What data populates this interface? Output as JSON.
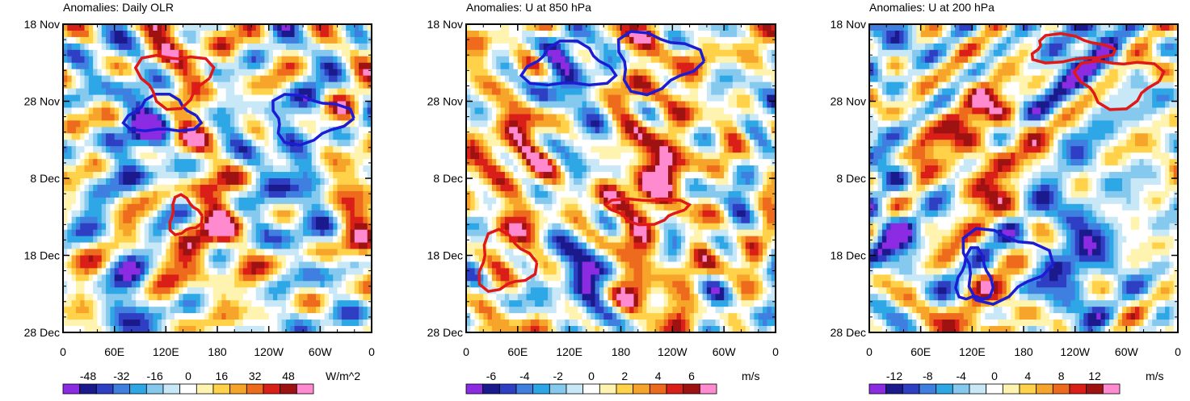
{
  "chart_data": [
    {
      "type": "heatmap",
      "title": "Anomalies: Daily OLR",
      "x_ticks": [
        "0",
        "60E",
        "120E",
        "180",
        "120W",
        "60W",
        "0"
      ],
      "y_ticks": [
        "18 Nov",
        "28 Nov",
        "8 Dec",
        "18 Dec",
        "28 Dec"
      ],
      "units": "W/m^2",
      "colorbar_labels": [
        "-48",
        "-32",
        "-16",
        "0",
        "16",
        "32",
        "48"
      ],
      "levels": [
        -56,
        -48,
        -40,
        -32,
        -24,
        -16,
        -8,
        0,
        8,
        16,
        24,
        32,
        40,
        48,
        56
      ],
      "bands": [
        {
          "center": 140,
          "width": 40,
          "sign": 1,
          "slope": 0.6
        },
        {
          "center": 80,
          "width": 35,
          "sign": -1,
          "slope": 0.3
        },
        {
          "center": 280,
          "width": 50,
          "sign": -1,
          "slope": 0.2
        },
        {
          "center": 330,
          "width": 40,
          "sign": 1,
          "slope": 0.1
        }
      ],
      "contours": [
        {
          "color": "blue",
          "points": [
            [
              20,
              [
                0,
                0
              ]
            ],
            [
              0,
              0
            ]
          ]
        }
      ]
    },
    {
      "type": "heatmap",
      "title": "Anomalies: U at 850 hPa",
      "x_ticks": [
        "0",
        "60E",
        "120E",
        "180",
        "120W",
        "60W",
        "0"
      ],
      "y_ticks": [
        "18 Nov",
        "28 Nov",
        "8 Dec",
        "18 Dec",
        "28 Dec"
      ],
      "units": "m/s",
      "colorbar_labels": [
        "-6",
        "-4",
        "-2",
        "0",
        "2",
        "4",
        "6"
      ],
      "levels": [
        -7,
        -6,
        -5,
        -4,
        -3,
        -2,
        -1,
        0,
        1,
        2,
        3,
        4,
        5,
        6,
        7
      ],
      "bands": [
        {
          "center": 190,
          "width": 30,
          "sign": 1,
          "slope": 0.0
        },
        {
          "center": 120,
          "width": 40,
          "sign": -1,
          "slope": 0.2
        },
        {
          "center": 60,
          "width": 50,
          "sign": 1,
          "slope": 0.1
        },
        {
          "center": 230,
          "width": 40,
          "sign": 1,
          "slope": 0.0
        }
      ]
    },
    {
      "type": "heatmap",
      "title": "Anomalies: U at 200 hPa",
      "x_ticks": [
        "0",
        "60E",
        "120E",
        "180",
        "120W",
        "60W",
        "0"
      ],
      "y_ticks": [
        "18 Nov",
        "28 Nov",
        "8 Dec",
        "18 Dec",
        "28 Dec"
      ],
      "units": "m/s",
      "colorbar_labels": [
        "-12",
        "-8",
        "-4",
        "0",
        "4",
        "8",
        "12"
      ],
      "levels": [
        -14,
        -12,
        -10,
        -8,
        -6,
        -4,
        -2,
        0,
        2,
        4,
        6,
        8,
        10,
        12,
        14
      ],
      "bands": [
        {
          "center": 240,
          "width": 50,
          "sign": -1,
          "slope": 0.0
        },
        {
          "center": 40,
          "width": 50,
          "sign": -1,
          "slope": 0.0
        },
        {
          "center": 130,
          "width": 50,
          "sign": 1,
          "slope": 0.0
        },
        {
          "center": 60,
          "width": 20,
          "sign": 1,
          "slope": 0.0
        }
      ]
    }
  ],
  "palette": [
    "#8b2be2",
    "#1a1a8c",
    "#2e3fc4",
    "#3f7fe0",
    "#2ea7e6",
    "#86c9ee",
    "#c9e8f7",
    "#ffffff",
    "#fff3b0",
    "#ffd24a",
    "#f7a52a",
    "#ee6a1c",
    "#d91f18",
    "#9e1212",
    "#ff8ad0"
  ],
  "contour_colors": {
    "positive": "#e01818",
    "negative": "#1c1cd4"
  }
}
